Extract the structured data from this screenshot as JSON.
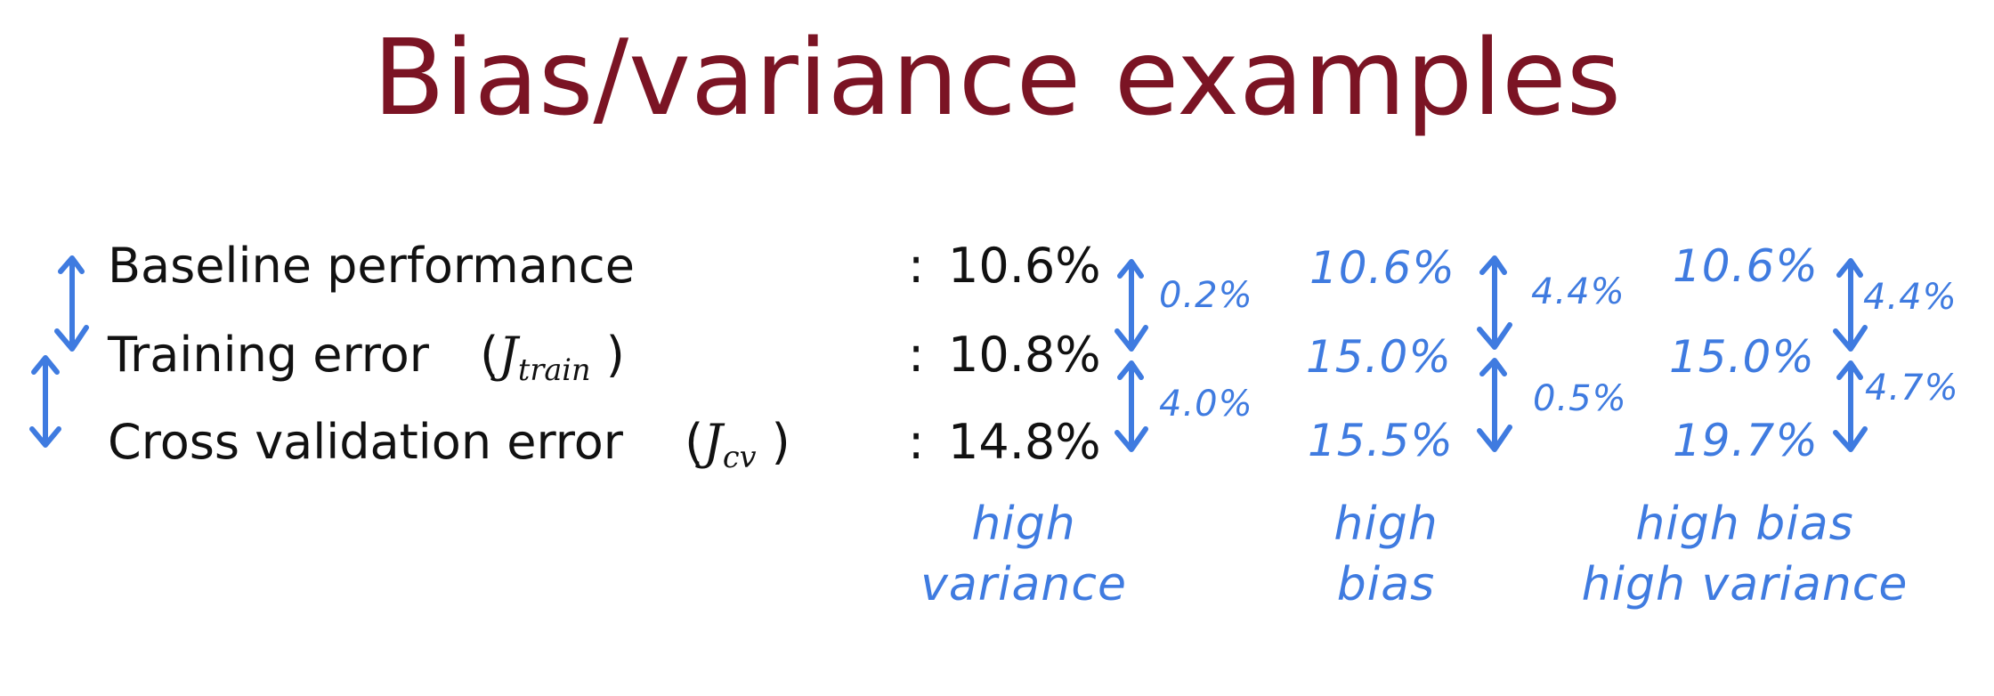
{
  "title": "Bias/variance examples",
  "accent_color": "#3f7be0",
  "title_color": "#7b1424",
  "rows": [
    {
      "label": "Baseline performance",
      "math": "",
      "math_sub": "",
      "value": "10.6%"
    },
    {
      "label": "Training error",
      "math": "J",
      "math_sub": "train",
      "value": "10.8%"
    },
    {
      "label": "Cross validation error",
      "math": "J",
      "math_sub": "cv",
      "value": "14.8%"
    }
  ],
  "colon": ":",
  "examples": [
    {
      "values": [],
      "gaps": [
        "0.2%",
        "4.0%"
      ],
      "caption": [
        "high",
        "variance"
      ]
    },
    {
      "values": [
        "10.6%",
        "15.0%",
        "15.5%"
      ],
      "gaps": [
        "4.4%",
        "0.5%"
      ],
      "caption": [
        "high",
        "bias"
      ]
    },
    {
      "values": [
        "10.6%",
        "15.0%",
        "19.7%"
      ],
      "gaps": [
        "4.4%",
        "4.7%"
      ],
      "caption": [
        "high bias",
        "high variance"
      ]
    }
  ]
}
